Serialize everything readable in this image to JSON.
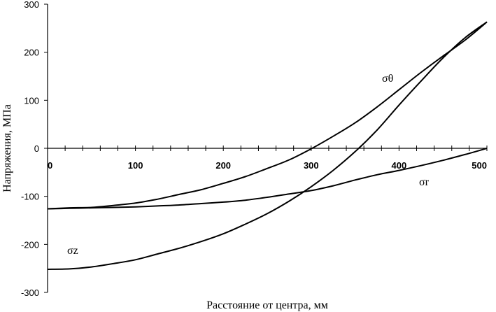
{
  "chart_data": {
    "type": "line",
    "title": "",
    "xlabel": "Расстояние от центра, мм",
    "ylabel": "Напряжения, МПа",
    "xlim": [
      0,
      500
    ],
    "ylim": [
      -300,
      300
    ],
    "x_tick_labels": [
      "0",
      "100",
      "200",
      "300",
      "400",
      "500"
    ],
    "x_tick_values": [
      0,
      100,
      200,
      300,
      400,
      500
    ],
    "y_tick_labels": [
      "300",
      "200",
      "100",
      "0",
      "-100",
      "-200",
      "-300"
    ],
    "y_tick_values": [
      300,
      200,
      100,
      0,
      -100,
      -200,
      -300
    ],
    "x_minor_tick_step": 20,
    "grid": false,
    "legend": "none",
    "x": [
      0,
      25,
      50,
      75,
      100,
      125,
      150,
      175,
      200,
      225,
      250,
      275,
      300,
      325,
      350,
      375,
      400,
      425,
      450,
      475,
      500
    ],
    "series": [
      {
        "name": "σθ",
        "values": [
          -126,
          -124,
          -123,
          -119,
          -114,
          -106,
          -96,
          -86,
          -73,
          -59,
          -42,
          -24,
          -1,
          25,
          53,
          86,
          122,
          158,
          192,
          225,
          263
        ]
      },
      {
        "name": "σr",
        "values": [
          -126,
          -125,
          -124,
          -123,
          -122,
          -120,
          -118,
          -115,
          -112,
          -108,
          -102,
          -95,
          -88,
          -78,
          -66,
          -55,
          -46,
          -36,
          -25,
          -13,
          0
        ]
      },
      {
        "name": "σz",
        "values": [
          -252,
          -251,
          -247,
          -240,
          -232,
          -220,
          -208,
          -194,
          -178,
          -158,
          -136,
          -110,
          -80,
          -46,
          -7,
          38,
          90,
          140,
          188,
          230,
          263
        ]
      }
    ]
  }
}
